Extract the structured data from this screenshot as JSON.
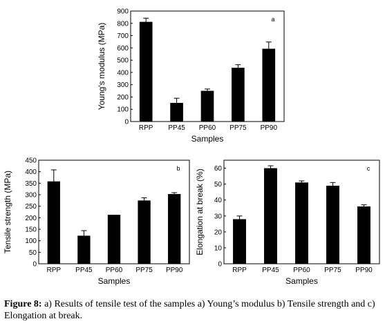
{
  "chart_data": [
    {
      "type": "bar",
      "panel_label": "a",
      "categories": [
        "RPP",
        "PP45",
        "PP60",
        "PP75",
        "PP90"
      ],
      "values": [
        812,
        152,
        250,
        438,
        593
      ],
      "errors": [
        30,
        38,
        15,
        25,
        55
      ],
      "xlabel": "Samples",
      "ylabel": "Young's modulus (MPa)",
      "ylim": [
        0,
        900
      ],
      "yticks": [
        0,
        100,
        200,
        300,
        400,
        500,
        600,
        700,
        800,
        900
      ]
    },
    {
      "type": "bar",
      "panel_label": "b",
      "categories": [
        "RPP",
        "PP45",
        "PP60",
        "PP75",
        "PP90"
      ],
      "values": [
        358,
        122,
        213,
        275,
        303
      ],
      "errors": [
        50,
        22,
        0,
        12,
        6
      ],
      "xlabel": "Samples",
      "ylabel": "Tensile strength (MPa)",
      "ylim": [
        0,
        450
      ],
      "yticks": [
        0,
        50,
        100,
        150,
        200,
        250,
        300,
        350,
        400,
        450
      ]
    },
    {
      "type": "bar",
      "panel_label": "c",
      "categories": [
        "RPP",
        "PP45",
        "PP60",
        "PP75",
        "PP90"
      ],
      "values": [
        28,
        60,
        51,
        49,
        36
      ],
      "errors": [
        2,
        1.5,
        1,
        2,
        1
      ],
      "xlabel": "Samples",
      "ylabel": "Elongation at break (%)",
      "ylim": [
        0,
        65
      ],
      "yticks": [
        0,
        10,
        20,
        30,
        40,
        50,
        60
      ]
    }
  ],
  "caption": {
    "label": "Figure 8:",
    "text": " a) Results of tensile test of the samples a) Young’s modulus b) Tensile strength and c) Elongation at break."
  }
}
